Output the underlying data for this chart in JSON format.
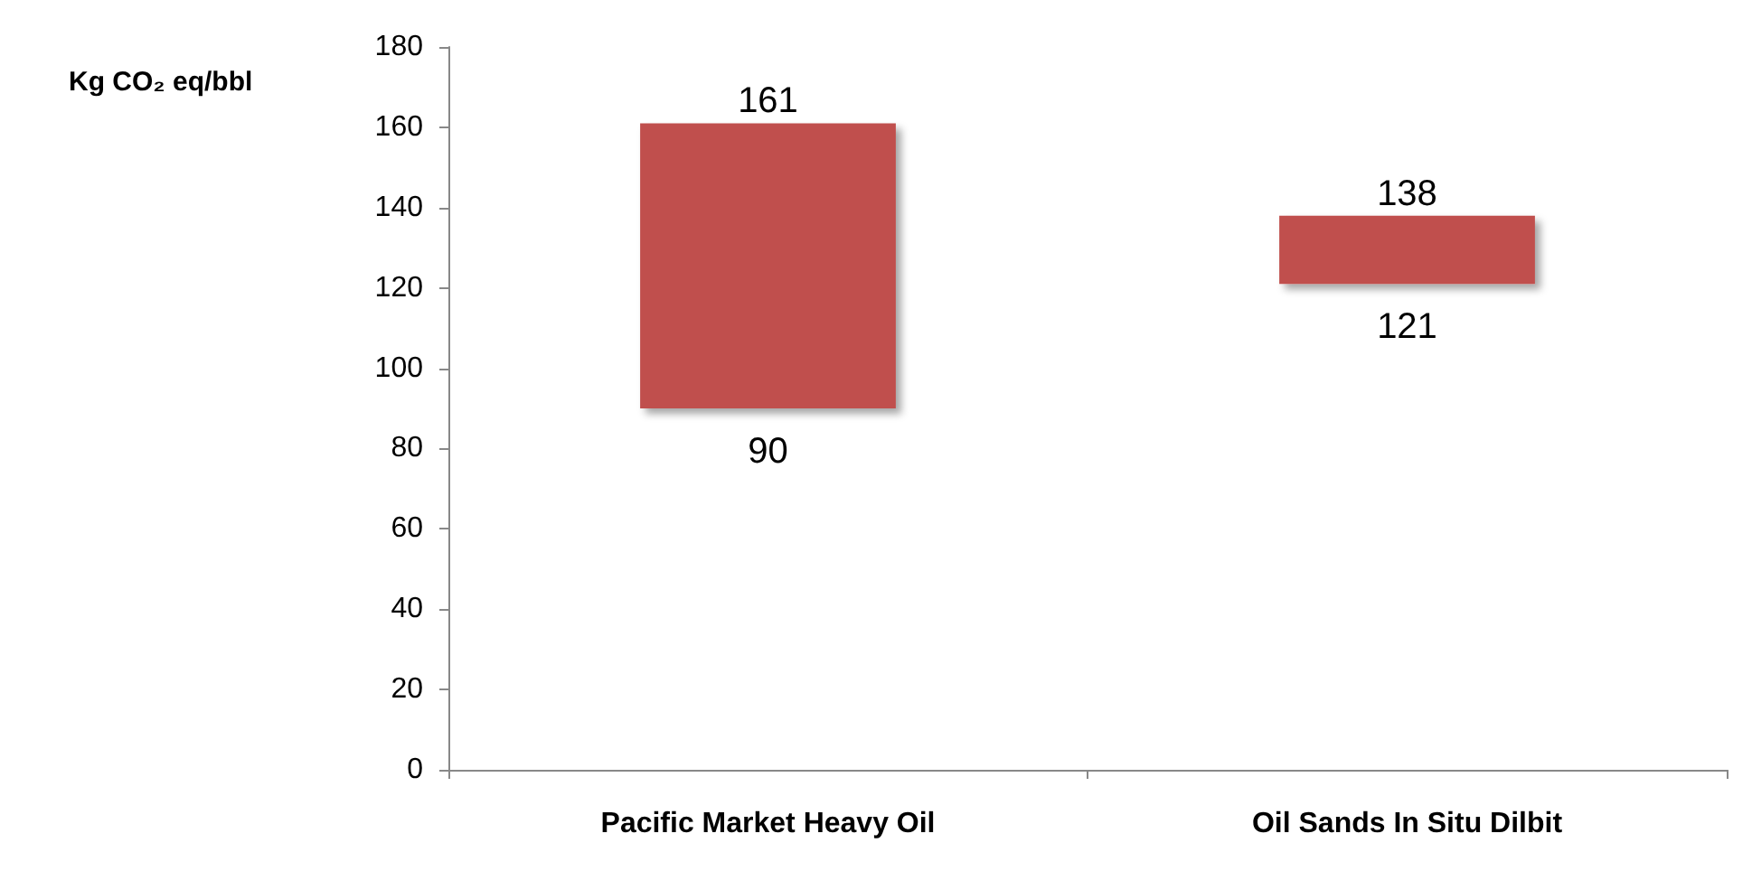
{
  "chart_data": {
    "type": "bar",
    "ylabel": "Kg CO₂ eq/bbl",
    "categories": [
      "Pacific Market Heavy Oil",
      "Oil Sands In Situ Dilbit"
    ],
    "base": [
      90,
      121
    ],
    "values": [
      71,
      17
    ],
    "color": "#c0504d",
    "ylim": [
      0,
      180
    ],
    "yticks": [
      0,
      20,
      40,
      60,
      80,
      100,
      120,
      140,
      160,
      180
    ],
    "grid": false,
    "annotations": [
      {
        "text": "161",
        "x": "Pacific Market Heavy Oil",
        "y": 161
      },
      {
        "text": "90",
        "x": "Pacific Market Heavy Oil",
        "y": 90
      },
      {
        "text": "138",
        "x": "Oil Sands In Situ Dilbit",
        "y": 138
      },
      {
        "text": "121",
        "x": "Oil Sands In Situ Dilbit",
        "y": 121
      }
    ]
  }
}
